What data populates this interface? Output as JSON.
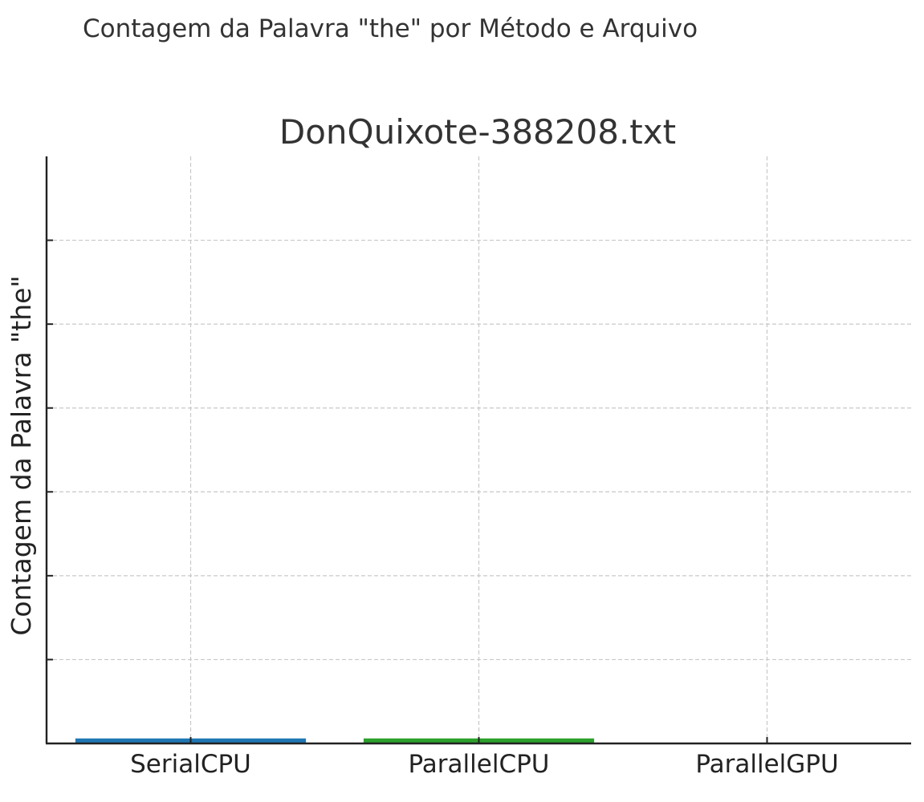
{
  "figure": {
    "suptitle": "Contagem da Palavra \"the\" por Método e Arquivo"
  },
  "chart_data": {
    "type": "bar",
    "title": "DonQuixote-388208.txt",
    "xlabel": "",
    "ylabel": "Contagem da Palavra \"the\"",
    "categories": [
      "SerialCPU",
      "ParallelCPU",
      "ParallelGPU"
    ],
    "values": [
      0.6,
      0.6,
      0
    ],
    "colors": [
      "#1f77b4",
      "#2ca02c",
      "#d62728"
    ],
    "ylim": [
      0,
      70
    ],
    "yticks": [
      10,
      20,
      30,
      40,
      50,
      60
    ],
    "ytick_labels_visible": false,
    "grid": true,
    "legend": "none"
  }
}
